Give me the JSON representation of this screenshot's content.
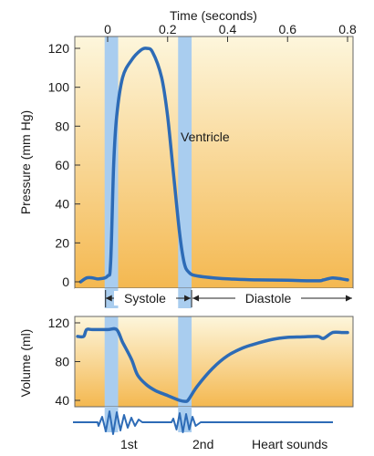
{
  "chart_data": [
    {
      "type": "line",
      "xlabel": "Time (seconds)",
      "ylabel": "Pressure (mm Hg)",
      "xlim": [
        -0.1,
        0.8
      ],
      "ylim": [
        0,
        120
      ],
      "x_ticks": [
        "0",
        "0.2",
        "0.4",
        "0.6",
        "0.8"
      ],
      "x_tick_values": [
        0,
        0.2,
        0.4,
        0.6,
        0.8
      ],
      "y_ticks": [
        "0",
        "20",
        "40",
        "60",
        "80",
        "100",
        "120"
      ],
      "y_tick_values": [
        0,
        20,
        40,
        60,
        80,
        100,
        120
      ],
      "grid": false,
      "series": [
        {
          "name": "Ventricle",
          "x": [
            -0.09,
            -0.07,
            -0.05,
            -0.03,
            0,
            0.01,
            0.02,
            0.03,
            0.05,
            0.08,
            0.11,
            0.13,
            0.15,
            0.18,
            0.2,
            0.22,
            0.24,
            0.255,
            0.27,
            0.3,
            0.4,
            0.5,
            0.6,
            0.7,
            0.72,
            0.75,
            0.78,
            0.8
          ],
          "y": [
            0,
            2,
            2,
            1.5,
            3,
            10,
            60,
            85,
            105,
            114,
            119,
            120,
            118,
            105,
            85,
            55,
            25,
            10,
            5,
            3,
            1.5,
            1,
            0.8,
            0.5,
            1,
            2,
            1.5,
            1
          ]
        }
      ],
      "annotations": [
        "Ventricle"
      ],
      "highlight_bands": [
        [
          -0.01,
          0.035
        ],
        [
          0.235,
          0.28
        ]
      ]
    },
    {
      "type": "line",
      "ylabel": "Volume (ml)",
      "xlim": [
        -0.1,
        0.8
      ],
      "ylim": [
        40,
        120
      ],
      "y_ticks": [
        "40",
        "80",
        "120"
      ],
      "y_tick_values": [
        40,
        80,
        120
      ],
      "grid": false,
      "series": [
        {
          "x": [
            -0.1,
            -0.08,
            -0.07,
            -0.05,
            0,
            0.03,
            0.05,
            0.08,
            0.1,
            0.13,
            0.16,
            0.2,
            0.24,
            0.26,
            0.27,
            0.3,
            0.35,
            0.4,
            0.45,
            0.5,
            0.55,
            0.6,
            0.65,
            0.7,
            0.72,
            0.75,
            0.78,
            0.8
          ],
          "y": [
            106,
            106,
            113,
            113,
            113,
            113,
            100,
            82,
            66,
            56,
            50,
            45,
            40,
            39,
            41,
            55,
            73,
            86,
            94,
            99,
            103,
            105,
            105.5,
            106,
            104,
            110,
            110,
            110
          ]
        }
      ],
      "highlight_bands": [
        [
          -0.01,
          0.035
        ],
        [
          0.235,
          0.28
        ]
      ]
    }
  ],
  "phases": {
    "systole": "Systole",
    "diastole": "Diastole"
  },
  "heart_sounds": {
    "label": "Heart sounds",
    "first": "1st",
    "second": "2nd"
  },
  "colors": {
    "curve": "#2d6bb6",
    "band": "#a9cdef",
    "gradient_top": "#fdf6dc",
    "gradient_bottom": "#f4b850",
    "frame": "#666666"
  }
}
